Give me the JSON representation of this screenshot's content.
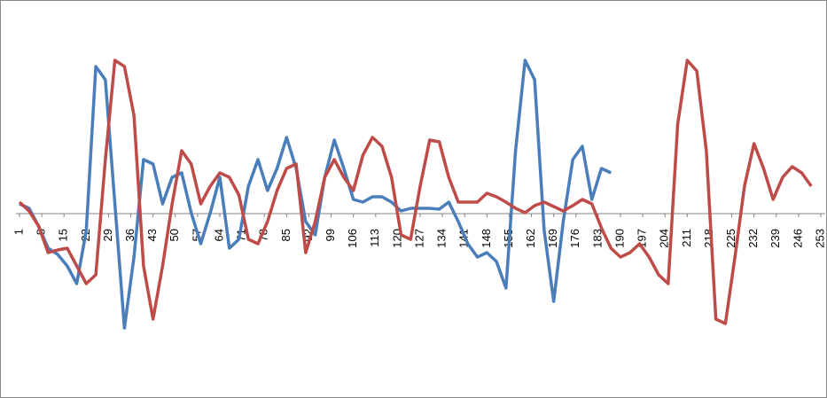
{
  "chart_data": {
    "type": "line",
    "x": [
      1,
      4,
      7,
      10,
      13,
      16,
      19,
      22,
      25,
      28,
      31,
      34,
      37,
      40,
      43,
      46,
      49,
      52,
      55,
      58,
      61,
      64,
      67,
      70,
      73,
      76,
      79,
      82,
      85,
      88,
      91,
      94,
      97,
      100,
      103,
      106,
      109,
      112,
      115,
      118,
      121,
      124,
      127,
      130,
      133,
      136,
      139,
      142,
      145,
      148,
      151,
      154,
      157,
      160,
      163,
      166,
      169,
      172,
      175,
      178,
      181,
      184,
      187,
      190,
      193,
      196,
      199,
      202,
      205,
      208,
      211,
      214,
      217,
      220,
      223,
      226,
      229,
      232,
      235,
      238,
      241,
      244,
      247,
      250
    ],
    "series": [
      {
        "color": "#4a7ebb",
        "values": [
          1.1,
          0.6,
          -1.4,
          -3.9,
          -4.6,
          -5.9,
          -7.9,
          -1.9,
          16.6,
          15.1,
          1.1,
          -12.9,
          -4.9,
          6.1,
          5.6,
          1.1,
          4.1,
          4.6,
          0.1,
          -3.4,
          0.1,
          4.1,
          -3.9,
          -2.9,
          3.1,
          6.1,
          2.6,
          5.1,
          8.6,
          5.1,
          -0.9,
          -2.4,
          4.1,
          8.3,
          5.1,
          1.6,
          1.3,
          1.9,
          1.9,
          1.3,
          0.3,
          0.6,
          0.6,
          0.6,
          0.5,
          1.3,
          -0.9,
          -3.4,
          -4.9,
          -4.4,
          -5.4,
          -8.4,
          7.1,
          17.3,
          15.1,
          -1.9,
          -9.9,
          -0.9,
          6.1,
          7.6,
          1.6,
          5.1,
          4.6,
          null,
          null,
          null,
          null,
          null,
          null,
          null,
          null,
          null,
          null,
          null,
          null,
          null,
          null,
          null,
          null,
          null,
          null,
          null,
          null,
          null
        ]
      },
      {
        "color": "#be4b48",
        "values": [
          1.3,
          0.3,
          -1.4,
          -4.4,
          -4.1,
          -3.9,
          -5.9,
          -7.9,
          -6.9,
          6.1,
          17.3,
          16.6,
          11.1,
          -5.9,
          -11.9,
          -5.9,
          1.1,
          7.1,
          5.6,
          1.1,
          3.1,
          4.6,
          4.1,
          2.1,
          -2.9,
          -3.4,
          -0.9,
          2.6,
          5.1,
          5.6,
          -4.4,
          -0.9,
          4.1,
          6.1,
          4.1,
          2.6,
          6.6,
          8.6,
          7.6,
          4.1,
          -2.4,
          -2.9,
          3.1,
          8.3,
          8.1,
          4.1,
          1.3,
          1.3,
          1.3,
          2.3,
          1.9,
          1.3,
          0.6,
          0.1,
          0.9,
          1.3,
          0.8,
          0.3,
          0.9,
          1.6,
          1.1,
          -1.6,
          -3.9,
          -4.9,
          -4.4,
          -3.4,
          -4.9,
          -6.9,
          -7.9,
          10.1,
          17.3,
          16.1,
          7.1,
          -11.9,
          -12.4,
          -4.9,
          3.1,
          7.9,
          5.1,
          1.6,
          4.1,
          5.3,
          4.6,
          3.1
        ]
      }
    ],
    "xlim": [
      1,
      253
    ],
    "xticks": [
      1,
      8,
      15,
      22,
      29,
      36,
      43,
      50,
      57,
      64,
      71,
      78,
      85,
      92,
      99,
      106,
      113,
      120,
      127,
      134,
      141,
      148,
      155,
      162,
      169,
      176,
      183,
      190,
      197,
      204,
      211,
      218,
      225,
      232,
      239,
      246,
      253
    ],
    "ylim": [
      -20,
      20
    ]
  }
}
